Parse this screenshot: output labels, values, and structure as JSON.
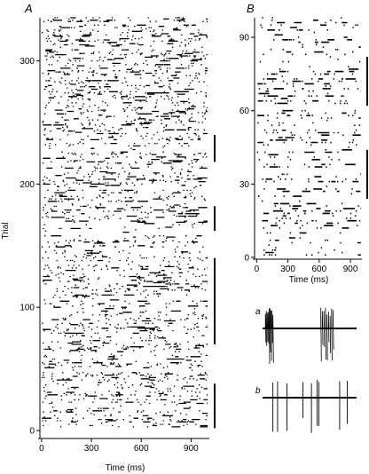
{
  "chart_data": [
    {
      "panel": "A",
      "type": "scatter",
      "subtype": "raster",
      "xlabel": "Time (ms)",
      "ylabel": "Trial",
      "xlim": [
        -10,
        1010
      ],
      "ylim": [
        -5,
        335
      ],
      "x_ticks": [
        0,
        300,
        600,
        900
      ],
      "y_ticks": [
        0,
        100,
        200,
        300
      ],
      "trials": 335,
      "marker": "spike tick",
      "highlight_bars": [
        [
          2,
          38
        ],
        [
          70,
          140
        ],
        [
          162,
          182
        ],
        [
          218,
          240
        ]
      ]
    },
    {
      "panel": "B",
      "type": "scatter",
      "subtype": "raster",
      "xlabel": "Time (ms)",
      "ylabel": "",
      "xlim": [
        -20,
        1010
      ],
      "ylim": [
        0,
        98
      ],
      "x_ticks": [
        0,
        300,
        600,
        900
      ],
      "y_ticks": [
        0,
        30,
        60,
        90
      ],
      "trials": 98,
      "marker": "spike tick",
      "highlight_bars": [
        [
          24,
          44
        ],
        [
          62,
          82
        ]
      ]
    }
  ],
  "traces": [
    {
      "label": "a",
      "kind": "burst-firing",
      "bursts_ms": [
        [
          30,
          110
        ],
        [
          620,
          750
        ]
      ]
    },
    {
      "label": "b",
      "kind": "single-spikes",
      "spikes_ms": [
        110,
        160,
        260,
        430,
        520,
        580,
        600,
        820,
        900
      ]
    }
  ],
  "colors": {
    "ink": "#000000",
    "background": "#ffffff"
  }
}
